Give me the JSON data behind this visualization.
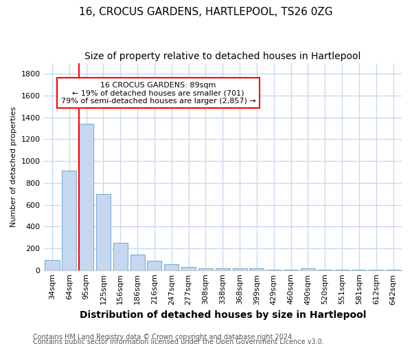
{
  "title1": "16, CROCUS GARDENS, HARTLEPOOL, TS26 0ZG",
  "title2": "Size of property relative to detached houses in Hartlepool",
  "xlabel": "Distribution of detached houses by size in Hartlepool",
  "ylabel": "Number of detached properties",
  "categories": [
    "34sqm",
    "64sqm",
    "95sqm",
    "125sqm",
    "156sqm",
    "186sqm",
    "216sqm",
    "247sqm",
    "277sqm",
    "308sqm",
    "338sqm",
    "368sqm",
    "399sqm",
    "429sqm",
    "460sqm",
    "490sqm",
    "520sqm",
    "551sqm",
    "581sqm",
    "612sqm",
    "642sqm"
  ],
  "values": [
    90,
    910,
    1340,
    700,
    250,
    145,
    85,
    55,
    30,
    20,
    15,
    20,
    15,
    3,
    3,
    15,
    3,
    3,
    3,
    3,
    3
  ],
  "bar_color": "#c5d8f0",
  "bar_edge_color": "#7bafd4",
  "red_line_x": 2,
  "annotation_text": "16 CROCUS GARDENS: 89sqm\n← 19% of detached houses are smaller (701)\n79% of semi-detached houses are larger (2,857) →",
  "annotation_box_color": "white",
  "annotation_box_edge_color": "red",
  "red_line_color": "red",
  "ylim": [
    0,
    1900
  ],
  "yticks": [
    0,
    200,
    400,
    600,
    800,
    1000,
    1200,
    1400,
    1600,
    1800
  ],
  "footer1": "Contains HM Land Registry data © Crown copyright and database right 2024.",
  "footer2": "Contains public sector information licensed under the Open Government Licence v3.0.",
  "bg_color": "#ffffff",
  "plot_bg_color": "#ffffff",
  "grid_color": "#c8d8ef",
  "title1_fontsize": 11,
  "title2_fontsize": 10,
  "xlabel_fontsize": 10,
  "ylabel_fontsize": 8,
  "tick_fontsize": 8,
  "annotation_fontsize": 8,
  "footer_fontsize": 7
}
